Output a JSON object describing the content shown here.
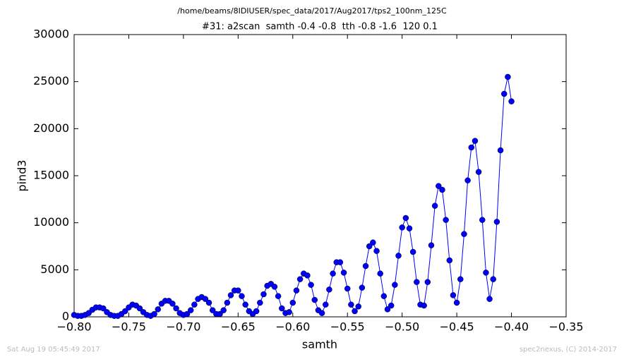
{
  "chart_data": {
    "type": "line",
    "title": "/home/beams/8IDIUSER/spec_data/2017/Aug2017/tps2_100nm_125C",
    "subtitle": "#31: a2scan  samth -0.4 -0.8  tth -0.8 -1.6  120 0.1",
    "x_label": "samth",
    "y_label": "pind3",
    "footer_left": "Sat Aug 19 05:45:49 2017",
    "footer_right": "spec2nexus, (C) 2014-2017",
    "xlim": [
      -0.8,
      -0.35
    ],
    "ylim": [
      0,
      30000
    ],
    "xticks": [
      {
        "value": -0.8,
        "label": "−0.80"
      },
      {
        "value": -0.75,
        "label": "−0.75"
      },
      {
        "value": -0.7,
        "label": "−0.70"
      },
      {
        "value": -0.65,
        "label": "−0.65"
      },
      {
        "value": -0.6,
        "label": "−0.60"
      },
      {
        "value": -0.55,
        "label": "−0.55"
      },
      {
        "value": -0.5,
        "label": "−0.50"
      },
      {
        "value": -0.45,
        "label": "−0.45"
      },
      {
        "value": -0.4,
        "label": "−0.40"
      },
      {
        "value": -0.35,
        "label": "−0.35"
      }
    ],
    "yticks": [
      0,
      5000,
      10000,
      15000,
      20000,
      25000,
      30000
    ],
    "series": [
      {
        "color": "#0000ff",
        "x": [
          -0.8,
          -0.79667,
          -0.79333,
          -0.79,
          -0.78667,
          -0.78333,
          -0.78,
          -0.77667,
          -0.77333,
          -0.77,
          -0.76667,
          -0.76333,
          -0.76,
          -0.75667,
          -0.75333,
          -0.75,
          -0.74667,
          -0.74333,
          -0.74,
          -0.73667,
          -0.73333,
          -0.73,
          -0.72667,
          -0.72333,
          -0.72,
          -0.71667,
          -0.71333,
          -0.71,
          -0.70667,
          -0.70333,
          -0.7,
          -0.69667,
          -0.69333,
          -0.69,
          -0.68667,
          -0.68333,
          -0.68,
          -0.67667,
          -0.67333,
          -0.67,
          -0.66667,
          -0.66333,
          -0.66,
          -0.65667,
          -0.65333,
          -0.65,
          -0.64667,
          -0.64333,
          -0.64,
          -0.63667,
          -0.63333,
          -0.63,
          -0.62667,
          -0.62333,
          -0.62,
          -0.61667,
          -0.61333,
          -0.61,
          -0.60667,
          -0.60333,
          -0.6,
          -0.59667,
          -0.59333,
          -0.59,
          -0.58667,
          -0.58333,
          -0.58,
          -0.57667,
          -0.57333,
          -0.57,
          -0.56667,
          -0.56333,
          -0.56,
          -0.55667,
          -0.55333,
          -0.55,
          -0.54667,
          -0.54333,
          -0.54,
          -0.53667,
          -0.53333,
          -0.53,
          -0.52667,
          -0.52333,
          -0.52,
          -0.51667,
          -0.51333,
          -0.51,
          -0.50667,
          -0.50333,
          -0.5,
          -0.49667,
          -0.49333,
          -0.49,
          -0.48667,
          -0.48333,
          -0.48,
          -0.47667,
          -0.47333,
          -0.47,
          -0.46667,
          -0.46333,
          -0.46,
          -0.45667,
          -0.45333,
          -0.45,
          -0.44667,
          -0.44333,
          -0.44,
          -0.43667,
          -0.43333,
          -0.43,
          -0.42667,
          -0.42333,
          -0.42,
          -0.41667,
          -0.41333,
          -0.41,
          -0.40667,
          -0.40333,
          -0.4
        ],
        "values": [
          200,
          100,
          100,
          200,
          400,
          750,
          1000,
          1000,
          900,
          500,
          200,
          100,
          100,
          300,
          600,
          1000,
          1300,
          1200,
          900,
          500,
          200,
          100,
          300,
          800,
          1400,
          1700,
          1700,
          1400,
          900,
          400,
          200,
          300,
          700,
          1300,
          1900,
          2100,
          1900,
          1500,
          700,
          300,
          300,
          700,
          1500,
          2300,
          2800,
          2800,
          2200,
          1300,
          600,
          300,
          600,
          1500,
          2400,
          3300,
          3500,
          3200,
          2200,
          900,
          400,
          500,
          1500,
          2800,
          4000,
          4600,
          4400,
          3400,
          1800,
          700,
          400,
          1300,
          2900,
          4600,
          5800,
          5800,
          4700,
          3000,
          1300,
          600,
          1100,
          3100,
          5400,
          7500,
          7900,
          7000,
          4600,
          2200,
          800,
          1200,
          3400,
          6500,
          9500,
          10500,
          9400,
          6900,
          3700,
          1300,
          1200,
          3700,
          7600,
          11800,
          13900,
          13500,
          10300,
          6000,
          2300,
          1500,
          4000,
          8800,
          14500,
          18000,
          18700,
          15400,
          10300,
          4700,
          1900,
          4000,
          10100,
          17700,
          23700,
          25500,
          22900
        ]
      }
    ]
  }
}
